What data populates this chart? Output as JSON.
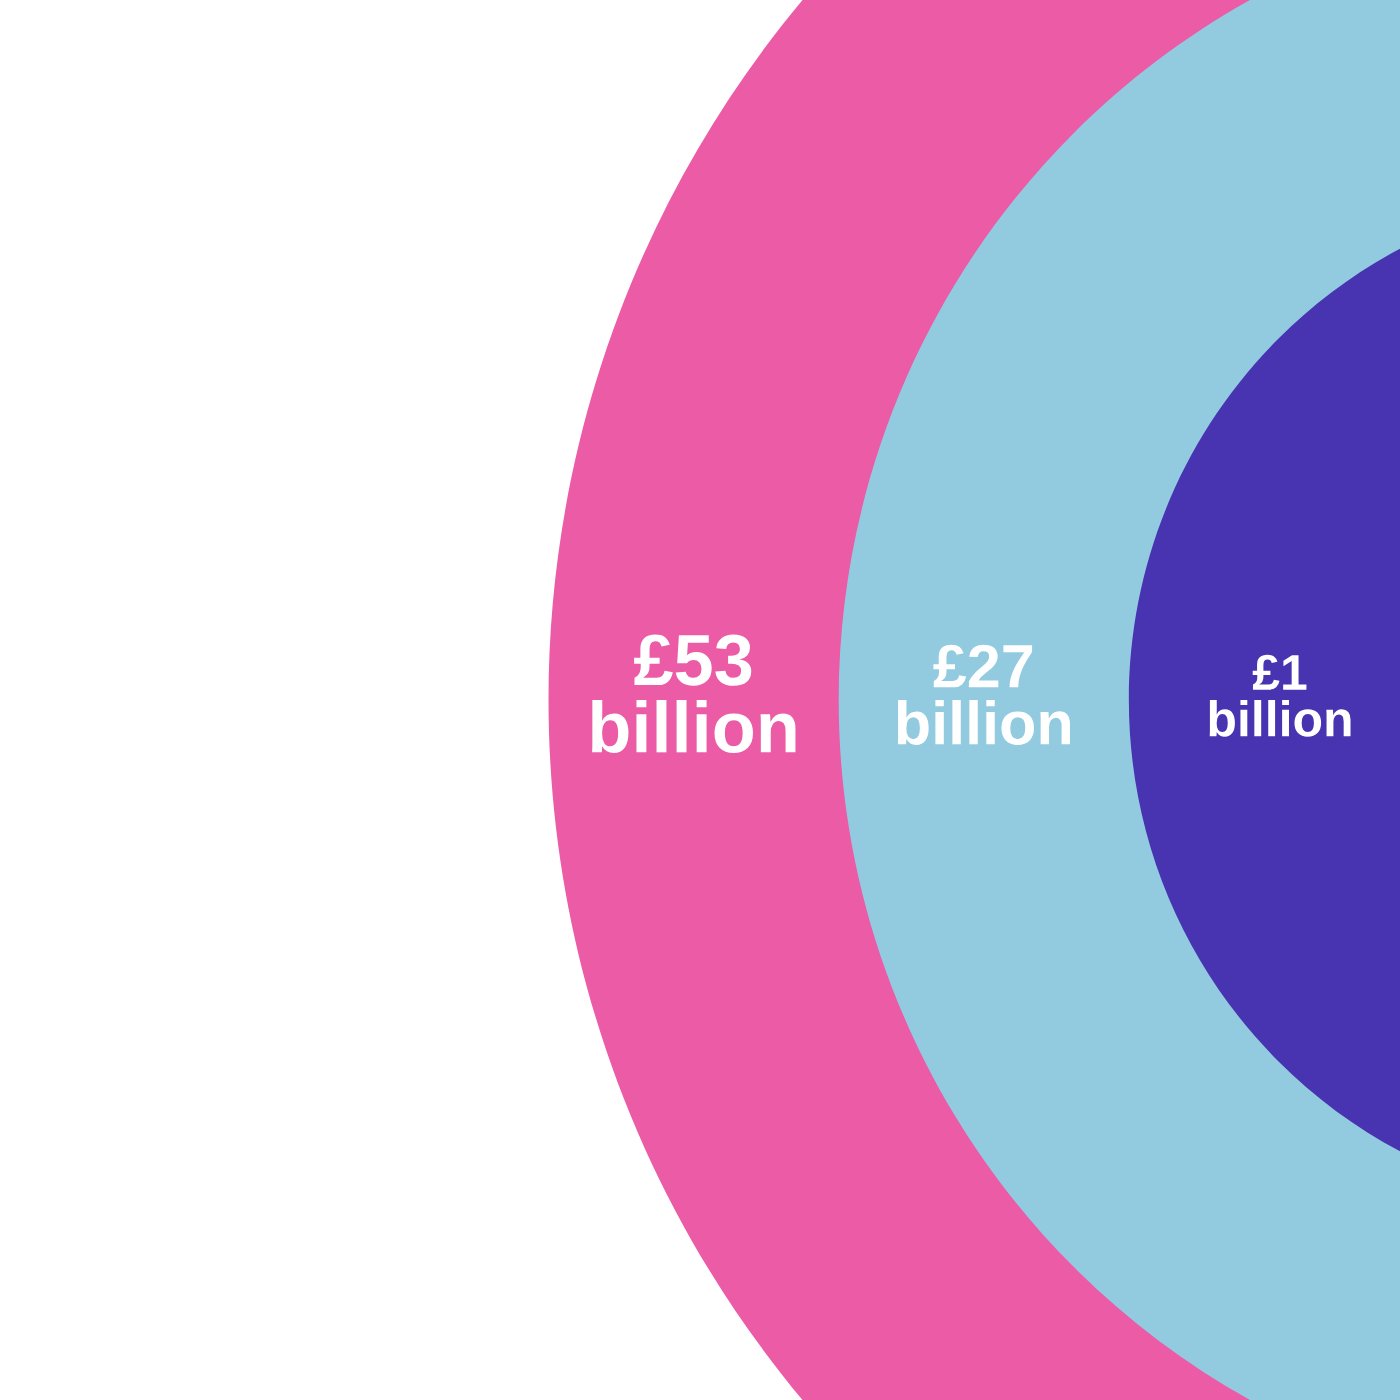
{
  "chart_data": {
    "type": "other",
    "categories": [
      null,
      null,
      null
    ],
    "values": [
      53,
      27,
      1
    ],
    "value_labels": [
      "£53 billion",
      "£27 billion",
      "£1 billion"
    ],
    "colors": [
      "#eb5ba6",
      "#92cbe0",
      "#4833b0"
    ]
  }
}
